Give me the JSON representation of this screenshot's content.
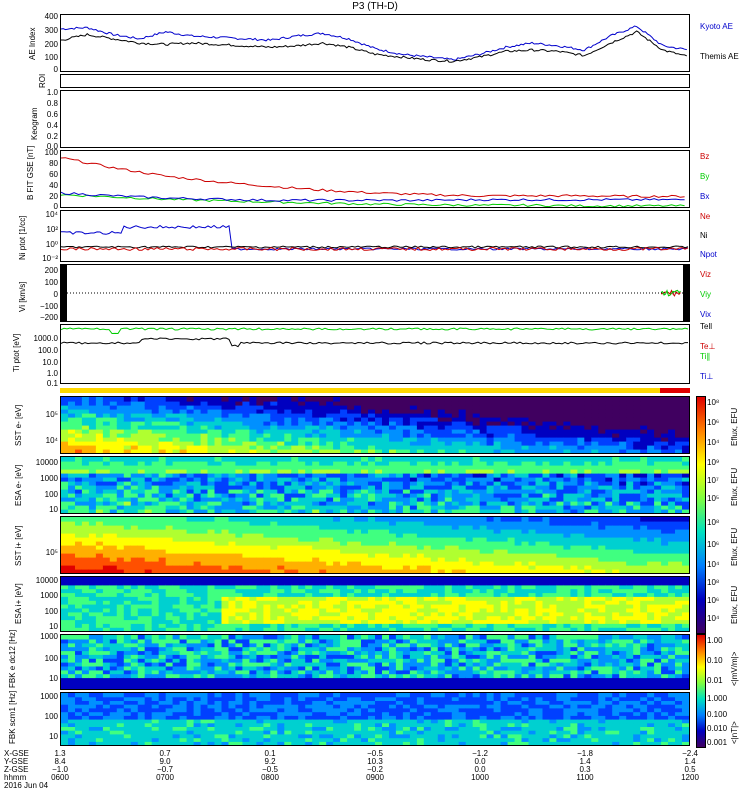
{
  "title": "P3 (TH-D)",
  "chart_data": [
    {
      "type": "line",
      "panel": "ae",
      "ylabel": "AE Index",
      "yticks": [
        "400",
        "300",
        "200",
        "100",
        "0"
      ],
      "ylim": [
        0,
        400
      ],
      "x": [
        6.0,
        6.25,
        6.5,
        6.75,
        7.0,
        7.25,
        7.5,
        7.75,
        8.0,
        8.25,
        8.5,
        8.75,
        9.0,
        9.25,
        9.5,
        9.75,
        10.0,
        10.25,
        10.5,
        10.75,
        11.0,
        11.25,
        11.5,
        11.75,
        12.0
      ],
      "series": [
        {
          "name": "Kyoto AE",
          "color": "#0000cc",
          "values": [
            300,
            310,
            260,
            230,
            280,
            250,
            240,
            230,
            220,
            250,
            270,
            230,
            160,
            120,
            100,
            80,
            120,
            170,
            200,
            180,
            150,
            250,
            320,
            180,
            150
          ]
        },
        {
          "name": "Themis AE",
          "color": "#000000",
          "values": [
            220,
            260,
            230,
            200,
            190,
            200,
            190,
            180,
            170,
            180,
            200,
            170,
            120,
            100,
            80,
            70,
            100,
            140,
            150,
            140,
            110,
            200,
            280,
            150,
            100
          ]
        }
      ]
    },
    {
      "type": "bar",
      "panel": "roi",
      "ylabel": "ROI",
      "values": []
    },
    {
      "type": "heatmap",
      "panel": "keogram",
      "ylabel": "Keogram",
      "yticks": [
        "1.0",
        "0.8",
        "0.6",
        "0.4",
        "0.2",
        "0.0"
      ]
    },
    {
      "type": "line",
      "panel": "bfgm",
      "ylabel": "B FIT GSE [nT]",
      "yticks": [
        "100",
        "80",
        "60",
        "40",
        "20",
        "0"
      ],
      "ylim": [
        0,
        100
      ],
      "x": [
        6,
        6.5,
        7,
        7.5,
        8,
        8.5,
        9,
        9.5,
        10,
        10.5,
        11,
        11.5,
        12
      ],
      "series": [
        {
          "name": "Bz",
          "color": "#cc0000",
          "values": [
            88,
            70,
            55,
            45,
            37,
            30,
            25,
            22,
            20,
            20,
            20,
            19,
            19
          ]
        },
        {
          "name": "By",
          "color": "#00cc00",
          "values": [
            22,
            18,
            14,
            11,
            9,
            7,
            5,
            4,
            3,
            3,
            2,
            2,
            2
          ]
        },
        {
          "name": "Bx",
          "color": "#0000cc",
          "values": [
            25,
            20,
            16,
            14,
            12,
            12,
            12,
            12,
            13,
            13,
            13,
            13,
            13
          ]
        }
      ]
    },
    {
      "type": "line",
      "panel": "density",
      "ylabel": "Ni  ptot [1/cc]",
      "yticks": [
        "10⁴",
        "10²",
        "10⁰",
        "10⁻²"
      ],
      "series": [
        {
          "name": "Ne",
          "color": "#cc0000"
        },
        {
          "name": "Ni",
          "color": "#000000"
        },
        {
          "name": "Npot",
          "color": "#0000cc"
        }
      ]
    },
    {
      "type": "line",
      "panel": "velocity",
      "ylabel": "Vi [km/s]",
      "yticks": [
        "200",
        "100",
        "0",
        "−100",
        "−200"
      ],
      "ylim": [
        -250,
        250
      ],
      "series": [
        {
          "name": "Viz",
          "color": "#cc0000"
        },
        {
          "name": "Viy",
          "color": "#00cc00"
        },
        {
          "name": "Vix",
          "color": "#0000cc"
        }
      ]
    },
    {
      "type": "line",
      "panel": "temperature",
      "ylabel": "Ti  ptot [eV]",
      "yticks": [
        "1000.0",
        "100.0",
        "10.0",
        "1.0",
        "0.1"
      ],
      "series": [
        {
          "name": "Tell",
          "color": "#000000"
        },
        {
          "name": "Te⊥",
          "color": "#cc0000"
        },
        {
          "name": "Ti∥",
          "color": "#00cc00"
        },
        {
          "name": "Ti⊥",
          "color": "#0000cc"
        }
      ]
    },
    {
      "type": "heatmap",
      "panel": "sst-e",
      "ylabel": "SST  e- [eV]",
      "yticks": [
        "10⁵",
        "10⁴"
      ],
      "cbar_ticks": [
        "10⁸",
        "10⁷",
        "10⁶",
        "10⁵",
        "10⁴",
        "10³"
      ],
      "cbar_label": "Eflux, EFU"
    },
    {
      "type": "heatmap",
      "panel": "esa-e",
      "ylabel": "ESA  e- [eV]",
      "yticks": [
        "10000",
        "1000",
        "100",
        "10"
      ],
      "cbar_ticks": [
        "10⁹",
        "10⁸",
        "10⁷",
        "10⁶",
        "10⁵",
        "10⁴",
        "10³"
      ],
      "cbar_label": "Eflux, EFU"
    },
    {
      "type": "heatmap",
      "panel": "sst-i",
      "ylabel": "SST  i+ [eV]",
      "yticks": [
        "10⁵"
      ],
      "cbar_ticks": [
        "10⁸",
        "10⁷",
        "10⁶",
        "10⁵",
        "10⁴"
      ],
      "cbar_label": "Eflux, EFU"
    },
    {
      "type": "heatmap",
      "panel": "esa-i",
      "ylabel": "ESA  i+ [eV]",
      "yticks": [
        "10000",
        "1000",
        "100",
        "10"
      ],
      "cbar_ticks": [
        "10⁸",
        "10⁷",
        "10⁶",
        "10⁵",
        "10⁴",
        "10³"
      ],
      "cbar_label": "Eflux, EFU"
    },
    {
      "type": "heatmap",
      "panel": "fbk-e",
      "ylabel": "FBK  e dc12 [Hz]",
      "yticks": [
        "1000",
        "100",
        "10"
      ],
      "cbar_ticks": [
        "1.00",
        "0.10",
        "0.01"
      ],
      "cbar_label": "<|mV/m|>"
    },
    {
      "type": "heatmap",
      "panel": "fbk-b",
      "ylabel": "FBK  scm1 [Hz]",
      "yticks": [
        "1000",
        "100",
        "10"
      ],
      "cbar_ticks": [
        "1.000",
        "0.100",
        "0.010",
        "0.001"
      ],
      "cbar_label": "<|nT|>"
    }
  ],
  "x_axis": {
    "row_labels": [
      "X-GSE",
      "Y-GSE",
      "Z-GSE",
      "hhmm",
      "2016 Jun 04"
    ],
    "columns": [
      {
        "x": "1.3",
        "y": "8.4",
        "z": "−1.0",
        "t": "0600"
      },
      {
        "x": "0.7",
        "y": "9.0",
        "z": "−0.7",
        "t": "0700"
      },
      {
        "x": "0.1",
        "y": "9.2",
        "z": "−0.5",
        "t": "0800"
      },
      {
        "x": "−0.5",
        "y": "10.3",
        "z": "−0.2",
        "t": "0900"
      },
      {
        "x": "−1.2",
        "y": "0.0",
        "z": "0.0",
        "t": "1000"
      },
      {
        "x": "−1.8",
        "y": "1.4",
        "z": "0.3",
        "t": "1100"
      },
      {
        "x": "−2.4",
        "y": "1.4",
        "z": "0.5",
        "t": "1200"
      }
    ]
  },
  "legend": {
    "ae": [
      "Kyoto AE",
      "Themis AE"
    ],
    "bfgm": [
      "Bz",
      "By",
      "Bx"
    ],
    "density": [
      "Ne",
      "Ni",
      "Npot"
    ],
    "velocity": [
      "Viz",
      "Viy",
      "Vix"
    ],
    "temperature": [
      "Tell",
      "Te⊥",
      "Ti∥",
      "Ti⊥"
    ]
  },
  "colors": {
    "red": "#cc0000",
    "green": "#00cc00",
    "blue": "#0000cc",
    "black": "#000000"
  }
}
